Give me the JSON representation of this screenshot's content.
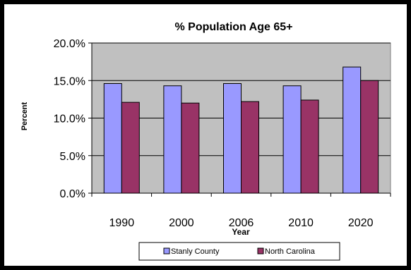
{
  "chart_data": {
    "type": "bar",
    "title": "% Population Age 65+",
    "xlabel": "Year",
    "ylabel": "Percent",
    "categories": [
      "1990",
      "2000",
      "2006",
      "2010",
      "2020"
    ],
    "series": [
      {
        "name": "Stanly County",
        "values": [
          14.6,
          14.3,
          14.6,
          14.3,
          16.8
        ],
        "color": "#9999ff"
      },
      {
        "name": "North Carolina",
        "values": [
          12.1,
          12.0,
          12.2,
          12.4,
          15.0
        ],
        "color": "#993366"
      }
    ],
    "ylim": [
      0,
      20
    ],
    "yticks": [
      "0.0%",
      "5.0%",
      "10.0%",
      "15.0%",
      "20.0%"
    ],
    "ytick_values": [
      0,
      5,
      10,
      15,
      20
    ],
    "grid": true,
    "plot_background": "#c0c0c0",
    "legend_position": "bottom"
  }
}
